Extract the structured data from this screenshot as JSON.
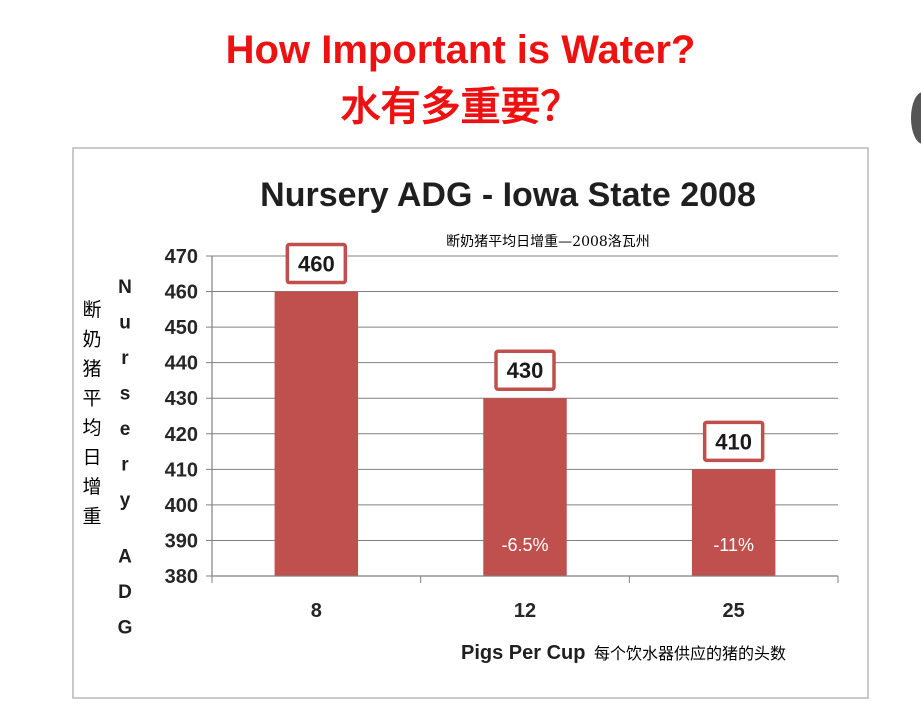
{
  "slide": {
    "title_en": "How Important is Water?",
    "title_cn": "水有多重要？"
  },
  "chart_data": {
    "type": "bar",
    "title": "Nursery ADG - Iowa State 2008",
    "subtitle_cn": "断奶猪平均日增重—2008洛瓦州",
    "categories": [
      "8",
      "12",
      "25"
    ],
    "series": [
      {
        "name": "Nursery ADG",
        "values": [
          460,
          430,
          410
        ]
      }
    ],
    "data_labels": [
      "460",
      "430",
      "410"
    ],
    "change_labels": [
      "",
      "-6.5%",
      "-11%"
    ],
    "xlabel": "Pigs Per Cup",
    "xlabel_cn": "每个饮水器供应的猪的头数",
    "ylabel": "Nursery ADG",
    "ylabel_cn": "断奶猪平均日增重",
    "ylim": [
      380,
      470
    ],
    "yticks": [
      380,
      390,
      400,
      410,
      420,
      430,
      440,
      450,
      460,
      470
    ],
    "grid": true,
    "colors": {
      "bar": "#c0504d",
      "title_red": "#ee1111"
    }
  }
}
